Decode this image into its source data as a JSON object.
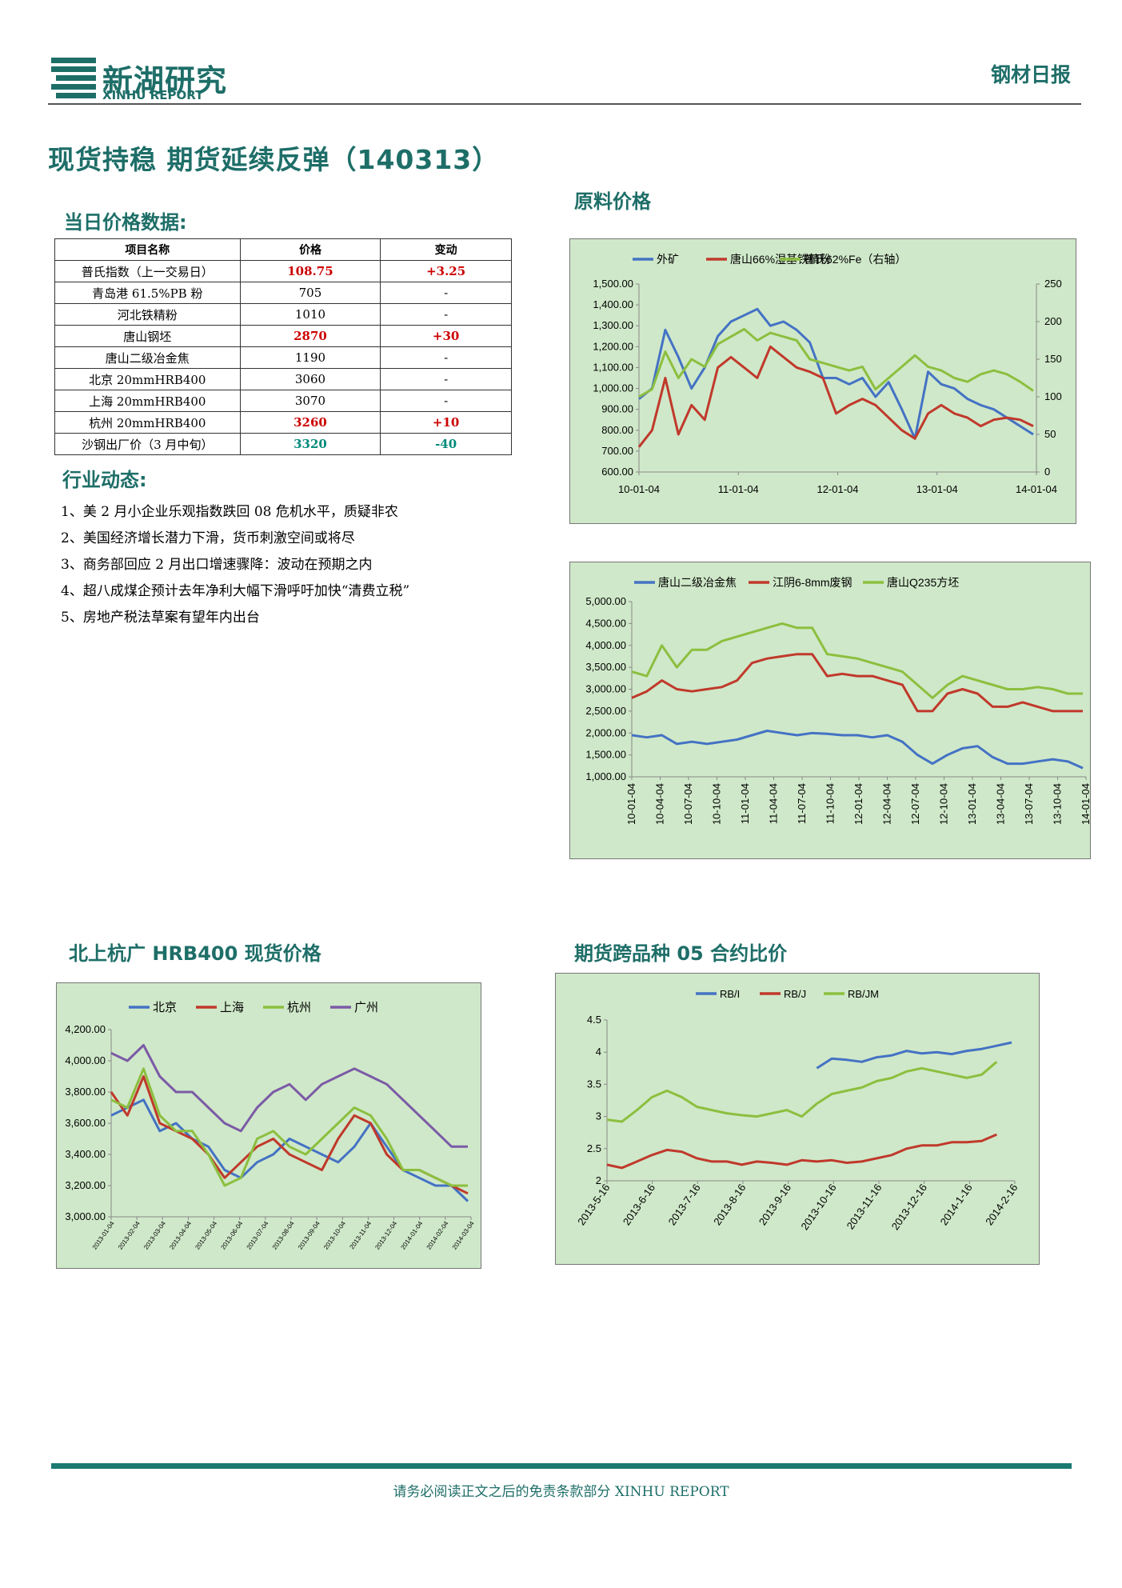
{
  "header": {
    "logo_cn": "新湖研究",
    "logo_en": "XINHU REPORT",
    "report_type": "钢材日报",
    "title": "现货持稳 期货延续反弹（140313）"
  },
  "price_section": {
    "title": "当日价格数据:",
    "columns": [
      "项目名称",
      "价格",
      "变动"
    ],
    "rows": [
      {
        "name": "普氏指数（上一交易日）",
        "price": "108.75",
        "change": "+3.25",
        "style": "red"
      },
      {
        "name": "青岛港 61.5%PB 粉",
        "price": "705",
        "change": "-",
        "style": "plain"
      },
      {
        "name": "河北铁精粉",
        "price": "1010",
        "change": "-",
        "style": "plain"
      },
      {
        "name": "唐山钢坯",
        "price": "2870",
        "change": "+30",
        "style": "red"
      },
      {
        "name": "唐山二级冶金焦",
        "price": "1190",
        "change": "-",
        "style": "plain"
      },
      {
        "name": "北京 20mmHRB400",
        "price": "3060",
        "change": "-",
        "style": "plain"
      },
      {
        "name": "上海 20mmHRB400",
        "price": "3070",
        "change": "-",
        "style": "plain"
      },
      {
        "name": "杭州 20mmHRB400",
        "price": "3260",
        "change": "+10",
        "style": "red"
      },
      {
        "name": "沙钢出厂价（3 月中旬）",
        "price": "3320",
        "change": "-40",
        "style": "green"
      }
    ]
  },
  "news_section": {
    "title": "行业动态:",
    "items": [
      "1、美 2 月小企业乐观指数跌回 08 危机水平，质疑非农",
      "2、美国经济增长潜力下滑，货币刺激空间或将尽",
      "3、商务部回应 2 月出口增速骤降：波动在预期之内",
      "4、超八成煤企预计去年净利大幅下滑呼吁加快“清费立税”",
      "5、房地产税法草案有望年内出台"
    ]
  },
  "sections": {
    "raw_material": "原料价格",
    "hrb400": "北上杭广 HRB400 现货价格",
    "futures_ratio": "期货跨品种 05 合约比价"
  },
  "footer": "请务必阅读正文之后的免责条款部分 XINHU REPORT",
  "colors": {
    "blue": "#4472c4",
    "red": "#c0392b",
    "green": "#8cbf3f",
    "purple": "#7b5aa6",
    "bg": "#cfe8c9",
    "brand": "#1e6e68"
  },
  "chart_data": [
    {
      "type": "line",
      "title": "",
      "series": [
        {
          "name": "外矿",
          "axis": "left",
          "values": [
            950,
            1000,
            1280,
            1150,
            1000,
            1100,
            1250,
            1320,
            1350,
            1380,
            1300,
            1320,
            1280,
            1220,
            1050,
            1050,
            1020,
            1050,
            960,
            1030,
            900,
            760,
            1080,
            1020,
            1000,
            950,
            920,
            900,
            860,
            820,
            780
          ]
        },
        {
          "name": "唐山66%湿基铁精粉",
          "axis": "left",
          "values": [
            720,
            800,
            1050,
            780,
            920,
            850,
            1100,
            1150,
            1100,
            1050,
            1200,
            1150,
            1100,
            1080,
            1050,
            880,
            920,
            950,
            920,
            860,
            800,
            760,
            880,
            920,
            880,
            860,
            820,
            850,
            860,
            850,
            820
          ]
        },
        {
          "name": "普氏62%Fe（右轴）",
          "axis": "right",
          "values": [
            100,
            110,
            160,
            125,
            150,
            140,
            170,
            180,
            190,
            175,
            185,
            180,
            175,
            150,
            145,
            140,
            135,
            140,
            110,
            125,
            140,
            155,
            140,
            135,
            125,
            120,
            130,
            135,
            130,
            120,
            108
          ]
        }
      ],
      "x_ticks": [
        "10-01-04",
        "11-01-04",
        "12-01-04",
        "13-01-04",
        "14-01-04"
      ],
      "y_left_ticks": [
        "600.00",
        "700.00",
        "800.00",
        "900.00",
        "1,000.00",
        "1,100.00",
        "1,200.00",
        "1,300.00",
        "1,400.00",
        "1,500.00"
      ],
      "y_right_ticks": [
        "0",
        "50",
        "100",
        "150",
        "200",
        "250"
      ],
      "ylim": [
        600,
        1500
      ],
      "ylim_right": [
        0,
        250
      ]
    },
    {
      "type": "line",
      "title": "",
      "series": [
        {
          "name": "唐山二级冶金焦",
          "values": [
            1950,
            1900,
            1950,
            1750,
            1800,
            1750,
            1800,
            1850,
            1950,
            2050,
            2000,
            1950,
            2000,
            1980,
            1950,
            1950,
            1900,
            1950,
            1800,
            1500,
            1300,
            1500,
            1650,
            1700,
            1450,
            1300,
            1300,
            1350,
            1400,
            1350,
            1200
          ]
        },
        {
          "name": "江阴6-8mm废钢",
          "values": [
            2800,
            2950,
            3200,
            3000,
            2950,
            3000,
            3050,
            3200,
            3600,
            3700,
            3750,
            3800,
            3800,
            3300,
            3350,
            3300,
            3300,
            3200,
            3100,
            2500,
            2500,
            2900,
            3000,
            2900,
            2600,
            2600,
            2700,
            2600,
            2500,
            2500,
            2500
          ]
        },
        {
          "name": "唐山Q235方坯",
          "values": [
            3400,
            3300,
            4000,
            3500,
            3900,
            3900,
            4100,
            4200,
            4300,
            4400,
            4500,
            4400,
            4400,
            3800,
            3750,
            3700,
            3600,
            3500,
            3400,
            3100,
            2800,
            3100,
            3300,
            3200,
            3100,
            3000,
            3000,
            3050,
            3000,
            2900,
            2900
          ]
        }
      ],
      "x_ticks": [
        "10-01-04",
        "10-04-04",
        "10-07-04",
        "10-10-04",
        "11-01-04",
        "11-04-04",
        "11-07-04",
        "11-10-04",
        "12-01-04",
        "12-04-04",
        "12-07-04",
        "12-10-04",
        "13-01-04",
        "13-04-04",
        "13-07-04",
        "13-10-04",
        "14-01-04"
      ],
      "y_ticks": [
        "1,000.00",
        "1,500.00",
        "2,000.00",
        "2,500.00",
        "3,000.00",
        "3,500.00",
        "4,000.00",
        "4,500.00",
        "5,000.00"
      ],
      "ylim": [
        1000,
        5000
      ]
    },
    {
      "type": "line",
      "title": "",
      "series": [
        {
          "name": "北京",
          "values": [
            3650,
            3700,
            3750,
            3550,
            3600,
            3500,
            3450,
            3300,
            3250,
            3350,
            3400,
            3500,
            3450,
            3400,
            3350,
            3450,
            3600,
            3450,
            3300,
            3250,
            3200,
            3200,
            3100
          ]
        },
        {
          "name": "上海",
          "values": [
            3800,
            3650,
            3900,
            3600,
            3550,
            3500,
            3400,
            3250,
            3350,
            3450,
            3500,
            3400,
            3350,
            3300,
            3500,
            3650,
            3600,
            3400,
            3300,
            3300,
            3250,
            3200,
            3150
          ]
        },
        {
          "name": "杭州",
          "values": [
            3750,
            3700,
            3950,
            3650,
            3550,
            3550,
            3400,
            3200,
            3250,
            3500,
            3550,
            3450,
            3400,
            3500,
            3600,
            3700,
            3650,
            3500,
            3300,
            3300,
            3250,
            3200,
            3200
          ]
        },
        {
          "name": "广州",
          "values": [
            4050,
            4000,
            4100,
            3900,
            3800,
            3800,
            3700,
            3600,
            3550,
            3700,
            3800,
            3850,
            3750,
            3850,
            3900,
            3950,
            3900,
            3850,
            3750,
            3650,
            3550,
            3450,
            3450
          ]
        }
      ],
      "x_ticks": [
        "2013-01-04",
        "2013-02-04",
        "2013-03-04",
        "2013-04-04",
        "2013-05-04",
        "2013-06-04",
        "2013-07-04",
        "2013-08-04",
        "2013-09-04",
        "2013-10-04",
        "2013-11-04",
        "2013-12-04",
        "2014-01-04",
        "2014-02-04",
        "2014-03-04"
      ],
      "y_ticks": [
        "3,000.00",
        "3,200.00",
        "3,400.00",
        "3,600.00",
        "3,800.00",
        "4,000.00",
        "4,200.00"
      ],
      "ylim": [
        3000,
        4200
      ]
    },
    {
      "type": "line",
      "title": "",
      "series": [
        {
          "name": "RB/I",
          "start_index": 14,
          "values": [
            3.75,
            3.9,
            3.88,
            3.85,
            3.92,
            3.95,
            4.02,
            3.98,
            4.0,
            3.97,
            4.02,
            4.05,
            4.1,
            4.15
          ]
        },
        {
          "name": "RB/J",
          "start_index": 0,
          "values": [
            2.25,
            2.2,
            2.3,
            2.4,
            2.48,
            2.45,
            2.35,
            2.3,
            2.3,
            2.25,
            2.3,
            2.28,
            2.25,
            2.32,
            2.3,
            2.32,
            2.28,
            2.3,
            2.35,
            2.4,
            2.5,
            2.55,
            2.55,
            2.6,
            2.6,
            2.62,
            2.72
          ]
        },
        {
          "name": "RB/JM",
          "start_index": 0,
          "values": [
            2.95,
            2.92,
            3.1,
            3.3,
            3.4,
            3.3,
            3.15,
            3.1,
            3.05,
            3.02,
            3.0,
            3.05,
            3.1,
            3.0,
            3.2,
            3.35,
            3.4,
            3.45,
            3.55,
            3.6,
            3.7,
            3.75,
            3.7,
            3.65,
            3.6,
            3.65,
            3.85
          ]
        }
      ],
      "x_ticks": [
        "2013-5-16",
        "2013-6-16",
        "2013-7-16",
        "2013-8-16",
        "2013-9-16",
        "2013-10-16",
        "2013-11-16",
        "2013-12-16",
        "2014-1-16",
        "2014-2-16"
      ],
      "y_ticks": [
        "2",
        "2.5",
        "3",
        "3.5",
        "4",
        "4.5"
      ],
      "ylim": [
        2,
        4.5
      ]
    }
  ]
}
